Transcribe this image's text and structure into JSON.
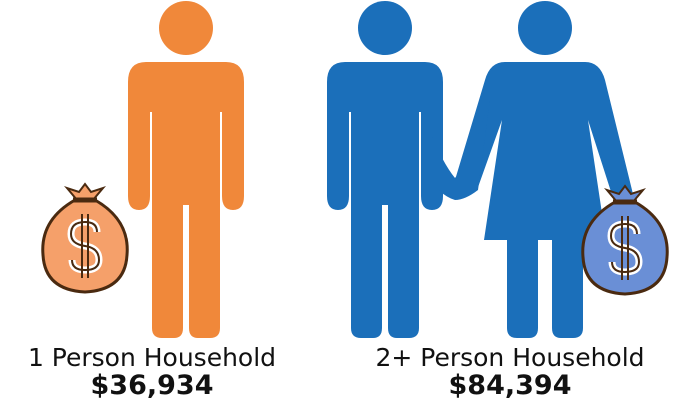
{
  "groups": [
    {
      "label": "1 Person Household",
      "income": "$36,934"
    },
    {
      "label": "2+ Person Household",
      "income": "$84,394"
    }
  ]
}
